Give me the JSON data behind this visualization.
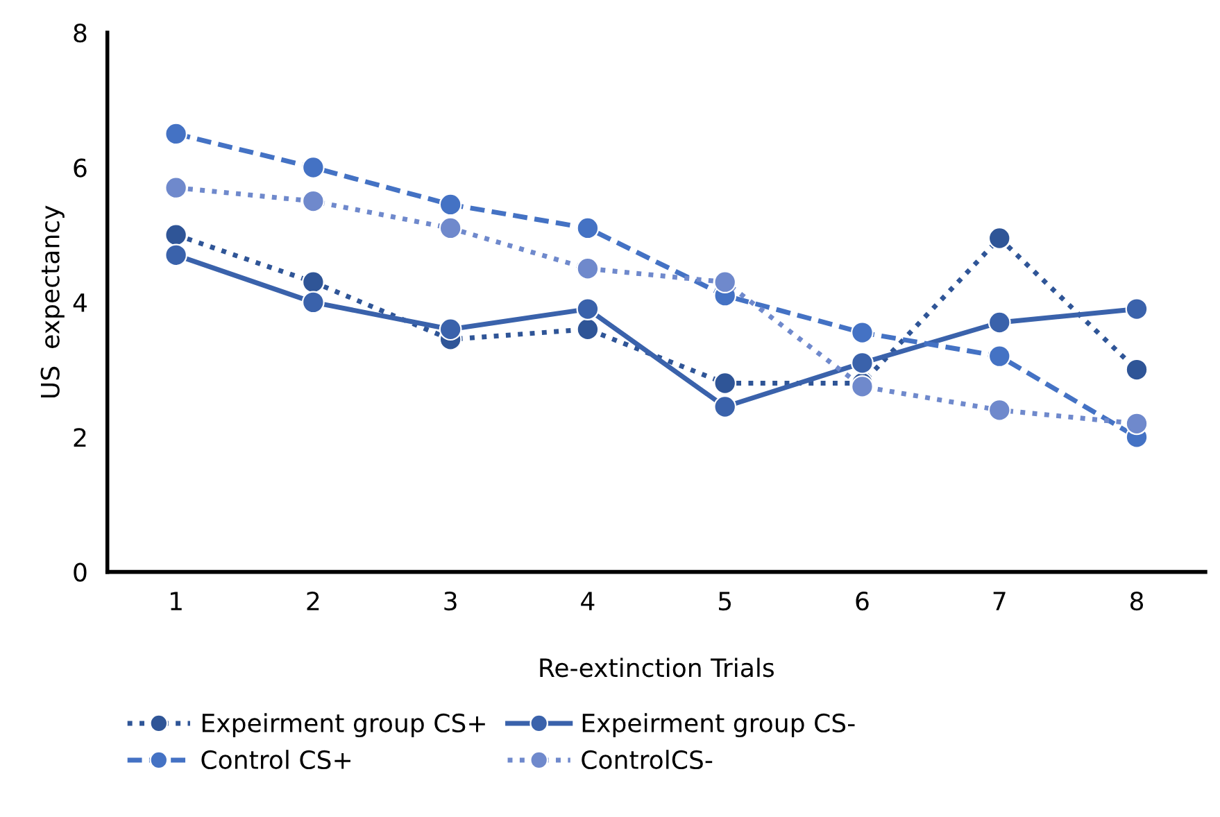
{
  "chart_data": {
    "type": "line",
    "xlabel": "Re-extinction Trials",
    "ylabel": "US  expectancy",
    "categories": [
      "1",
      "2",
      "3",
      "4",
      "5",
      "6",
      "7",
      "8"
    ],
    "series": [
      {
        "name": "Expeirment group CS+",
        "color": "#2f5597",
        "line_style": "dotted",
        "values": [
          5.0,
          4.3,
          3.45,
          3.6,
          2.8,
          2.8,
          4.95,
          3.0
        ]
      },
      {
        "name": "Expeirment group CS-",
        "color": "#3a62ab",
        "line_style": "solid",
        "values": [
          4.7,
          4.0,
          3.6,
          3.9,
          2.45,
          3.1,
          3.7,
          3.9
        ]
      },
      {
        "name": "Control CS+",
        "color": "#4472c4",
        "line_style": "dashed",
        "values": [
          6.5,
          6.0,
          5.45,
          5.1,
          4.1,
          3.55,
          3.2,
          2.0
        ]
      },
      {
        "name": "ControlCS-",
        "color": "#6f89cc",
        "line_style": "dotted",
        "values": [
          5.7,
          5.5,
          5.1,
          4.5,
          4.3,
          2.75,
          2.4,
          2.2
        ]
      }
    ],
    "ylim": [
      0,
      8
    ],
    "yticks": [
      0,
      2,
      4,
      6,
      8
    ],
    "grid": false,
    "legend": "bottom",
    "marker": "circle"
  }
}
